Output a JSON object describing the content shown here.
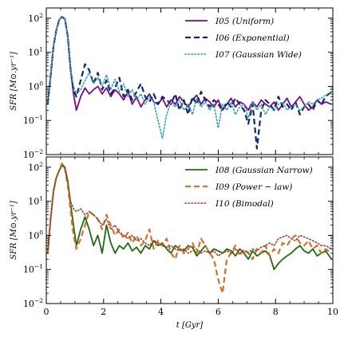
{
  "chart_data": [
    {
      "type": "line",
      "panel": "top",
      "ylabel": "SFR [M⊙.yr⁻¹]",
      "xlabel": "",
      "xlim": [
        0,
        10
      ],
      "ylim": [
        0.01,
        200
      ],
      "yscale": "log",
      "ytick_values": [
        0.01,
        0.1,
        1,
        10,
        100
      ],
      "ytick_labels": [
        "10⁻²",
        "10⁻¹",
        "10⁰",
        "10¹",
        "10²"
      ],
      "legend_position": "top-right",
      "series": [
        {
          "name": "I05 (Uniform)",
          "color": "#7b0a85",
          "dash": "solid",
          "x": [
            0.05,
            0.15,
            0.25,
            0.35,
            0.45,
            0.55,
            0.65,
            0.75,
            0.85,
            0.95,
            1.05,
            1.2,
            1.35,
            1.5,
            1.65,
            1.8,
            1.95,
            2.1,
            2.25,
            2.4,
            2.55,
            2.7,
            2.85,
            3.0,
            3.15,
            3.3,
            3.45,
            3.6,
            3.75,
            3.9,
            4.05,
            4.2,
            4.35,
            4.5,
            4.65,
            4.8,
            4.95,
            5.1,
            5.25,
            5.4,
            5.55,
            5.7,
            5.85,
            6.0,
            6.15,
            6.3,
            6.45,
            6.6,
            6.75,
            6.9,
            7.05,
            7.2,
            7.35,
            7.5,
            7.65,
            7.8,
            7.95,
            8.1,
            8.25,
            8.4,
            8.55,
            8.7,
            8.85,
            9.0,
            9.15,
            9.3,
            9.45,
            9.6,
            9.75,
            9.95
          ],
          "y": [
            0.3,
            2,
            15,
            45,
            90,
            110,
            95,
            30,
            3,
            0.6,
            0.2,
            0.5,
            0.9,
            0.6,
            0.8,
            1.0,
            0.6,
            0.9,
            0.5,
            0.8,
            0.6,
            0.4,
            0.7,
            0.3,
            0.5,
            0.25,
            0.4,
            0.6,
            0.35,
            0.3,
            0.45,
            0.25,
            0.4,
            0.3,
            0.5,
            0.35,
            0.25,
            0.4,
            0.55,
            0.3,
            0.45,
            0.35,
            0.25,
            0.4,
            0.2,
            0.3,
            0.45,
            0.25,
            0.35,
            0.3,
            0.2,
            0.35,
            0.25,
            0.4,
            0.3,
            0.25,
            0.35,
            0.2,
            0.3,
            0.45,
            0.25,
            0.35,
            0.5,
            0.3,
            0.2,
            0.25,
            0.4,
            0.3,
            0.35,
            0.3
          ]
        },
        {
          "name": "I06 (Exponential)",
          "color": "#16246e",
          "dash": "dashed",
          "x": [
            0.05,
            0.15,
            0.25,
            0.35,
            0.45,
            0.55,
            0.65,
            0.75,
            0.85,
            0.95,
            1.05,
            1.2,
            1.35,
            1.5,
            1.65,
            1.8,
            1.95,
            2.1,
            2.25,
            2.4,
            2.55,
            2.7,
            2.85,
            3.0,
            3.15,
            3.3,
            3.45,
            3.6,
            3.75,
            3.9,
            4.05,
            4.2,
            4.35,
            4.5,
            4.65,
            4.8,
            4.95,
            5.1,
            5.25,
            5.4,
            5.55,
            5.7,
            5.85,
            6.0,
            6.15,
            6.3,
            6.45,
            6.6,
            6.75,
            6.9,
            7.05,
            7.2,
            7.35,
            7.5,
            7.65,
            7.8,
            7.95,
            8.1,
            8.25,
            8.4,
            8.55,
            8.7,
            8.85,
            9.0,
            9.15,
            9.3,
            9.45,
            9.6,
            9.75,
            9.95
          ],
          "y": [
            0.3,
            2,
            15,
            45,
            90,
            110,
            95,
            30,
            3,
            0.8,
            0.5,
            1.5,
            4.5,
            3,
            1.2,
            2.5,
            0.8,
            1.5,
            0.6,
            0.9,
            1.8,
            0.5,
            0.8,
            0.4,
            0.7,
            1.2,
            0.5,
            0.35,
            0.6,
            0.3,
            0.5,
            0.4,
            0.3,
            0.6,
            0.2,
            0.4,
            0.15,
            0.5,
            0.3,
            0.7,
            0.4,
            0.25,
            0.4,
            0.3,
            0.2,
            0.35,
            0.25,
            0.45,
            0.3,
            0.2,
            0.08,
            0.3,
            0.015,
            0.2,
            0.4,
            0.3,
            0.2,
            0.5,
            0.25,
            0.3,
            0.2,
            0.35,
            0.15,
            0.25,
            0.3,
            0.2,
            0.4,
            0.3,
            0.5,
            0.7
          ]
        },
        {
          "name": "I07 (Gaussian Wide)",
          "color": "#2aa0b0",
          "dash": "dotted",
          "x": [
            0.05,
            0.15,
            0.25,
            0.35,
            0.45,
            0.55,
            0.65,
            0.75,
            0.85,
            0.95,
            1.05,
            1.2,
            1.35,
            1.5,
            1.65,
            1.8,
            1.95,
            2.1,
            2.25,
            2.4,
            2.55,
            2.7,
            2.85,
            3.0,
            3.15,
            3.3,
            3.45,
            3.6,
            3.75,
            3.9,
            4.05,
            4.2,
            4.35,
            4.5,
            4.65,
            4.8,
            4.95,
            5.1,
            5.25,
            5.4,
            5.55,
            5.7,
            5.85,
            6.0,
            6.15,
            6.3,
            6.45,
            6.6,
            6.75,
            6.9,
            7.05,
            7.2,
            7.35,
            7.5,
            7.65,
            7.8,
            7.95,
            8.1,
            8.25,
            8.4,
            8.55,
            8.7,
            8.85,
            9.0,
            9.15,
            9.3,
            9.45,
            9.6,
            9.75,
            9.95
          ],
          "y": [
            0.3,
            2,
            15,
            45,
            90,
            110,
            95,
            30,
            3,
            1,
            0.6,
            0.8,
            1.5,
            2.5,
            1.2,
            1.8,
            1.0,
            2.2,
            0.8,
            1.6,
            0.7,
            1.2,
            0.5,
            0.8,
            0.4,
            0.6,
            0.3,
            0.5,
            0.35,
            0.1,
            0.03,
            0.15,
            0.35,
            0.25,
            0.4,
            0.2,
            0.3,
            0.15,
            0.45,
            0.25,
            0.35,
            0.2,
            0.3,
            0.06,
            0.3,
            0.2,
            0.35,
            0.15,
            0.25,
            0.3,
            0.12,
            0.35,
            0.2,
            0.3,
            0.15,
            0.25,
            0.2,
            0.3,
            0.35,
            0.2,
            0.25,
            0.3,
            0.2,
            0.25,
            0.35,
            0.3,
            0.4,
            0.45,
            0.55,
            0.7
          ]
        }
      ]
    },
    {
      "type": "line",
      "panel": "bottom",
      "ylabel": "SFR [M⊙.yr⁻¹]",
      "xlabel": "t [Gyr]",
      "xlim": [
        0,
        10
      ],
      "ylim": [
        0.01,
        200
      ],
      "yscale": "log",
      "xtick_values": [
        0,
        2,
        4,
        6,
        8,
        10
      ],
      "xtick_labels": [
        "0",
        "2",
        "4",
        "6",
        "8",
        "10"
      ],
      "ytick_values": [
        0.01,
        0.1,
        1,
        10,
        100
      ],
      "ytick_labels": [
        "10⁻²",
        "10⁻¹",
        "10⁰",
        "10¹",
        "10²"
      ],
      "legend_position": "top-right",
      "series": [
        {
          "name": "I08 (Gaussian Narrow)",
          "color": "#1e6b12",
          "dash": "solid",
          "x": [
            0.05,
            0.15,
            0.25,
            0.35,
            0.45,
            0.55,
            0.65,
            0.75,
            0.85,
            0.95,
            1.05,
            1.2,
            1.35,
            1.5,
            1.65,
            1.8,
            1.95,
            2.1,
            2.25,
            2.4,
            2.55,
            2.7,
            2.85,
            3.0,
            3.15,
            3.3,
            3.45,
            3.6,
            3.75,
            3.9,
            4.05,
            4.2,
            4.35,
            4.5,
            4.65,
            4.8,
            4.95,
            5.1,
            5.25,
            5.4,
            5.55,
            5.7,
            5.85,
            6.0,
            6.15,
            6.3,
            6.45,
            6.6,
            6.75,
            6.9,
            7.05,
            7.2,
            7.35,
            7.5,
            7.65,
            7.8,
            7.95,
            8.1,
            8.25,
            8.4,
            8.55,
            8.7,
            8.85,
            9.0,
            9.15,
            9.3,
            9.45,
            9.6,
            9.75,
            9.95
          ],
          "y": [
            0.3,
            3,
            20,
            50,
            80,
            120,
            100,
            40,
            8,
            2,
            0.5,
            1.5,
            3.5,
            1.5,
            0.5,
            1.0,
            0.3,
            2.0,
            0.6,
            0.3,
            0.5,
            0.4,
            0.6,
            0.35,
            0.45,
            0.3,
            0.5,
            0.4,
            0.7,
            0.5,
            0.6,
            0.4,
            0.3,
            0.5,
            0.4,
            0.35,
            0.5,
            0.45,
            0.25,
            0.35,
            0.5,
            0.3,
            0.4,
            0.35,
            0.3,
            0.4,
            0.35,
            0.25,
            0.4,
            0.3,
            0.2,
            0.35,
            0.25,
            0.3,
            0.35,
            0.25,
            0.1,
            0.15,
            0.2,
            0.25,
            0.3,
            0.4,
            0.5,
            0.35,
            0.3,
            0.4,
            0.25,
            0.3,
            0.35,
            0.2
          ]
        },
        {
          "name": "I09 (Power − law)",
          "color": "#d4712a",
          "dash": "dashed",
          "x": [
            0.05,
            0.15,
            0.25,
            0.35,
            0.45,
            0.55,
            0.65,
            0.75,
            0.85,
            0.95,
            1.05,
            1.2,
            1.35,
            1.5,
            1.65,
            1.8,
            1.95,
            2.1,
            2.25,
            2.4,
            2.55,
            2.7,
            2.85,
            3.0,
            3.15,
            3.3,
            3.45,
            3.6,
            3.75,
            3.9,
            4.05,
            4.2,
            4.35,
            4.5,
            4.65,
            4.8,
            4.95,
            5.1,
            5.25,
            5.4,
            5.55,
            5.7,
            5.85,
            6.0,
            6.15,
            6.3,
            6.45,
            6.6,
            6.75,
            6.9,
            7.05,
            7.2,
            7.35,
            7.5,
            7.65,
            7.8,
            7.95,
            8.1,
            8.25,
            8.4,
            8.55,
            8.7,
            8.85,
            9.0,
            9.15,
            9.3,
            9.45,
            9.6,
            9.75,
            9.95
          ],
          "y": [
            0.3,
            3,
            20,
            50,
            80,
            130,
            90,
            30,
            5,
            1,
            0.4,
            0.8,
            2,
            5,
            4,
            3,
            1.5,
            4,
            2,
            1.0,
            1.5,
            0.8,
            1.2,
            0.6,
            1.0,
            0.5,
            0.7,
            1.5,
            0.4,
            0.7,
            0.5,
            0.8,
            0.3,
            0.2,
            0.5,
            0.3,
            0.4,
            0.6,
            0.3,
            0.8,
            0.5,
            0.3,
            0.2,
            0.05,
            0.02,
            0.2,
            0.3,
            0.5,
            0.25,
            0.4,
            0.3,
            0.2,
            0.4,
            0.3,
            0.5,
            0.25,
            0.4,
            0.3,
            0.6,
            0.5,
            0.8,
            1.0,
            0.6,
            0.5,
            0.7,
            0.4,
            0.5,
            0.3,
            0.4,
            0.3
          ]
        },
        {
          "name": "I10 (Bimodal)",
          "color": "#a0402a",
          "dash": "dotted",
          "x": [
            0.05,
            0.15,
            0.25,
            0.35,
            0.45,
            0.55,
            0.65,
            0.75,
            0.85,
            0.95,
            1.05,
            1.2,
            1.35,
            1.5,
            1.65,
            1.8,
            1.95,
            2.1,
            2.25,
            2.4,
            2.55,
            2.7,
            2.85,
            3.0,
            3.15,
            3.3,
            3.45,
            3.6,
            3.75,
            3.9,
            4.05,
            4.2,
            4.35,
            4.5,
            4.65,
            4.8,
            4.95,
            5.1,
            5.25,
            5.4,
            5.55,
            5.7,
            5.85,
            6.0,
            6.15,
            6.3,
            6.45,
            6.6,
            6.75,
            6.9,
            7.05,
            7.2,
            7.35,
            7.5,
            7.65,
            7.8,
            7.95,
            8.1,
            8.25,
            8.4,
            8.55,
            8.7,
            8.85,
            9.0,
            9.15,
            9.3,
            9.45,
            9.6,
            9.75,
            9.95
          ],
          "y": [
            0.3,
            3,
            20,
            50,
            80,
            110,
            90,
            35,
            10,
            6,
            5,
            6,
            4,
            5,
            4,
            3,
            2,
            3,
            1.5,
            2,
            1.2,
            1.0,
            0.8,
            1.0,
            0.7,
            0.8,
            0.6,
            0.5,
            0.7,
            0.6,
            0.5,
            0.45,
            0.5,
            0.4,
            0.35,
            0.4,
            0.3,
            0.35,
            0.4,
            0.3,
            0.35,
            0.3,
            0.35,
            0.25,
            0.3,
            0.35,
            0.3,
            0.4,
            0.3,
            0.35,
            0.3,
            0.4,
            0.35,
            0.45,
            0.5,
            0.6,
            0.5,
            0.8,
            0.9,
            1.0,
            0.8,
            0.7,
            1.0,
            0.9,
            0.8,
            0.7,
            0.6,
            0.5,
            0.5,
            0.4
          ]
        }
      ]
    }
  ]
}
